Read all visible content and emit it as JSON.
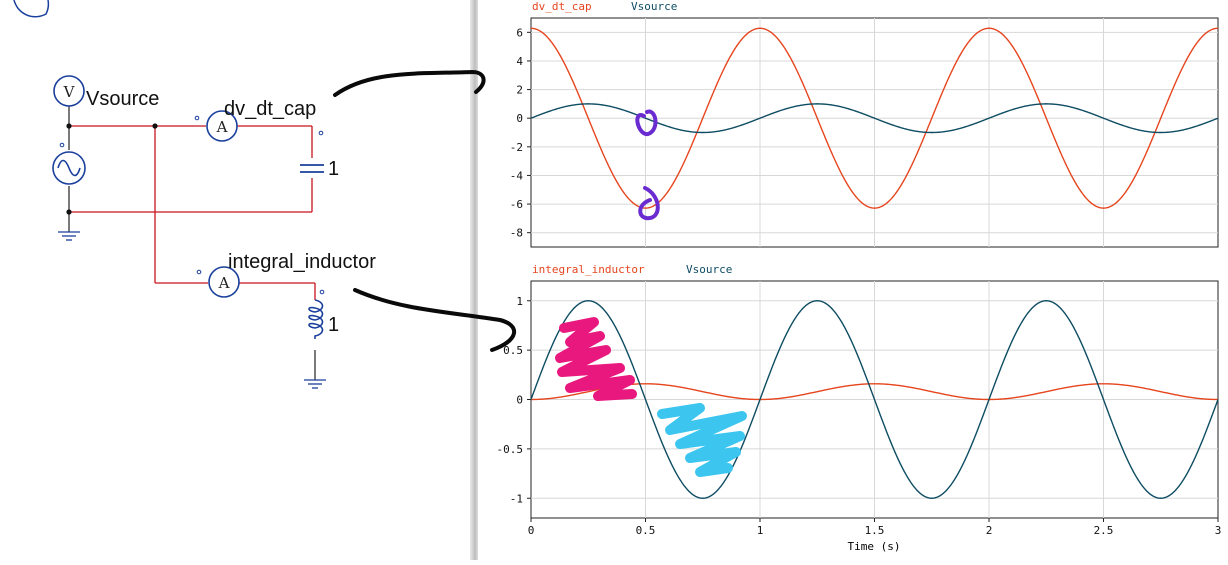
{
  "schematic": {
    "voltmeter_symbol": "V",
    "vsource_label": "Vsource",
    "ammeter_top_symbol": "A",
    "ammeter_top_label": "dv_dt_cap",
    "capacitor_value": "1",
    "ammeter_bottom_symbol": "A",
    "ammeter_bottom_label": "integral_inductor",
    "inductor_value": "1"
  },
  "colors": {
    "wire": "#c8141e",
    "component": "#1a3f9c",
    "series_red": "#e6461e",
    "series_teal": "#0e4d63",
    "annotation_black": "#0a0a0a",
    "annotation_purple": "#6a2bd1",
    "annotation_pink": "#e8187f",
    "annotation_cyan": "#3cc6ef"
  },
  "chart_data": [
    {
      "type": "line",
      "legend": [
        "dv_dt_cap",
        "Vsource"
      ],
      "series": [
        {
          "name": "dv_dt_cap",
          "function": "2*pi*cos(2*pi*t)",
          "amplitude": 6.283,
          "frequency_hz": 1,
          "color": "#e6461e"
        },
        {
          "name": "Vsource",
          "function": "sin(2*pi*t)",
          "amplitude": 1,
          "frequency_hz": 1,
          "color": "#0e4d63"
        }
      ],
      "xlim": [
        0,
        3
      ],
      "ylim": [
        -9,
        7
      ],
      "yticks": [
        6,
        4,
        2,
        0,
        -2,
        -4,
        -6,
        -8
      ],
      "grid": true
    },
    {
      "type": "line",
      "legend": [
        "integral_inductor",
        "Vsource"
      ],
      "series": [
        {
          "name": "integral_inductor",
          "function": "(1-cos(2*pi*t))/(4*pi)",
          "amplitude": 0.159,
          "frequency_hz": 1,
          "color": "#e6461e"
        },
        {
          "name": "Vsource",
          "function": "sin(2*pi*t)",
          "amplitude": 1,
          "frequency_hz": 1,
          "color": "#0e4d63"
        }
      ],
      "xlim": [
        0,
        3
      ],
      "ylim": [
        -1.2,
        1.2
      ],
      "yticks": [
        "1",
        "0.5",
        "0",
        "-0.5",
        "-1"
      ],
      "xticks": [
        "0",
        "0.5",
        "1",
        "1.5",
        "2",
        "2.5",
        "3"
      ],
      "xlabel": "Time (s)",
      "grid": true
    }
  ]
}
